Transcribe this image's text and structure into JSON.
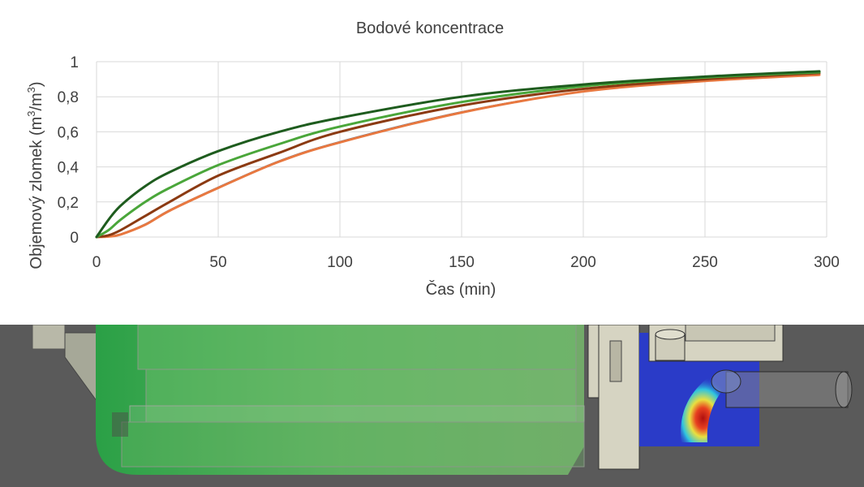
{
  "chart_data": {
    "type": "line",
    "title": "Bodové koncentrace",
    "xlabel": "Čas (min)",
    "ylabel_main": "Objemový zlomek (m",
    "ylabel_sup1": "3",
    "ylabel_mid": "/m",
    "ylabel_sup2": "3",
    "ylabel_end": ")",
    "xlim": [
      0,
      300
    ],
    "ylim": [
      0,
      1
    ],
    "x_ticks": [
      0,
      50,
      100,
      150,
      200,
      250,
      300
    ],
    "x_tick_labels": [
      "0",
      "50",
      "100",
      "150",
      "200",
      "250",
      "300"
    ],
    "y_ticks": [
      0,
      0.2,
      0.4,
      0.6,
      0.8,
      1
    ],
    "y_tick_labels": [
      "0",
      "0,2",
      "0,4",
      "0,6",
      "0,8",
      "1"
    ],
    "grid": true,
    "legend": "none",
    "series": [
      {
        "color": "#1e5c1e",
        "x": [
          0,
          5,
          10,
          20,
          30,
          50,
          75,
          100,
          150,
          200,
          250,
          297
        ],
        "y": [
          0,
          0.1,
          0.18,
          0.29,
          0.37,
          0.49,
          0.6,
          0.68,
          0.8,
          0.87,
          0.915,
          0.945
        ]
      },
      {
        "color": "#4aa63a",
        "x": [
          0,
          5,
          10,
          20,
          30,
          50,
          75,
          100,
          150,
          200,
          250,
          297
        ],
        "y": [
          0,
          0.04,
          0.1,
          0.2,
          0.28,
          0.41,
          0.53,
          0.63,
          0.77,
          0.86,
          0.91,
          0.94
        ]
      },
      {
        "color": "#8b3a12",
        "x": [
          0,
          5,
          10,
          20,
          30,
          50,
          75,
          100,
          150,
          200,
          250,
          297
        ],
        "y": [
          0,
          0.01,
          0.04,
          0.12,
          0.2,
          0.35,
          0.48,
          0.6,
          0.75,
          0.845,
          0.9,
          0.935
        ]
      },
      {
        "color": "#e87840",
        "x": [
          0,
          5,
          10,
          20,
          30,
          50,
          75,
          100,
          150,
          200,
          250,
          297
        ],
        "y": [
          0,
          0.003,
          0.015,
          0.07,
          0.15,
          0.28,
          0.43,
          0.54,
          0.71,
          0.83,
          0.89,
          0.925
        ]
      },
      {
        "color": "#2e5e8e",
        "x": [
          0,
          5,
          10,
          20,
          30,
          50,
          75,
          100,
          150,
          200,
          250,
          297
        ],
        "y": [
          0,
          0.004,
          0.018,
          0.075,
          0.155,
          0.285,
          0.435,
          0.545,
          0.715,
          0.832,
          0.892,
          0.927
        ]
      }
    ]
  },
  "render": {
    "background_color": "#5a5a5a",
    "fluid_color": "#3fae4a",
    "housing_color": "#d4d2c0",
    "section_color": "#2a3bc8",
    "plume_colors": [
      "#2a3bc8",
      "#2ec4e0",
      "#e8e040",
      "#e84020",
      "#b01010"
    ]
  }
}
